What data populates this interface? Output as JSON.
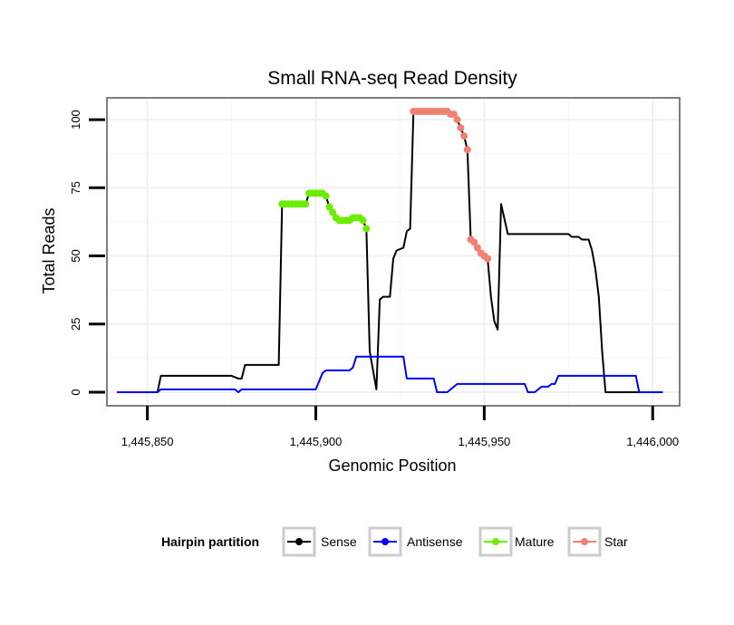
{
  "chart_data": {
    "type": "line",
    "title": "Small RNA-seq Read Density",
    "xlabel": "Genomic Position",
    "ylabel": "Total Reads",
    "xlim": [
      1445838,
      1446008
    ],
    "ylim": [
      -5,
      108
    ],
    "x_ticks": [
      1445850,
      1445900,
      1445950,
      1446000
    ],
    "x_tick_labels": [
      "1,445,850",
      "1,445,900",
      "1,445,950",
      "1,446,000"
    ],
    "y_ticks": [
      0,
      25,
      50,
      75,
      100
    ],
    "y_tick_labels": [
      "0",
      "25",
      "50",
      "75",
      "100"
    ],
    "grid": true,
    "legend": {
      "title": "Hairpin partition",
      "position": "bottom",
      "entries": [
        "Sense",
        "Antisense",
        "Mature",
        "Star"
      ]
    },
    "series": [
      {
        "name": "Sense",
        "color": "#000000",
        "points": [
          [
            1445841,
            0
          ],
          [
            1445853,
            0
          ],
          [
            1445854,
            6
          ],
          [
            1445858,
            6
          ],
          [
            1445875,
            6
          ],
          [
            1445877,
            5
          ],
          [
            1445878,
            5
          ],
          [
            1445879,
            10
          ],
          [
            1445880,
            10
          ],
          [
            1445889,
            10
          ],
          [
            1445890,
            69
          ],
          [
            1445897,
            69
          ],
          [
            1445898,
            73
          ],
          [
            1445902,
            73
          ],
          [
            1445903,
            72
          ],
          [
            1445904,
            68
          ],
          [
            1445905,
            66
          ],
          [
            1445907,
            63
          ],
          [
            1445910,
            63
          ],
          [
            1445912,
            64
          ],
          [
            1445914,
            63
          ],
          [
            1445915,
            60
          ],
          [
            1445916,
            15
          ],
          [
            1445917,
            8
          ],
          [
            1445918,
            1
          ],
          [
            1445919,
            34
          ],
          [
            1445920,
            35
          ],
          [
            1445922,
            35
          ],
          [
            1445923,
            49
          ],
          [
            1445924,
            52
          ],
          [
            1445926,
            53
          ],
          [
            1445927,
            59
          ],
          [
            1445928,
            60
          ],
          [
            1445929,
            103
          ],
          [
            1445939,
            103
          ],
          [
            1445941,
            102
          ],
          [
            1445942,
            100
          ],
          [
            1445943,
            97
          ],
          [
            1445944,
            94
          ],
          [
            1445945,
            89
          ],
          [
            1445946,
            56
          ],
          [
            1445947,
            55
          ],
          [
            1445948,
            53
          ],
          [
            1445949,
            51
          ],
          [
            1445950,
            50
          ],
          [
            1445951,
            49
          ],
          [
            1445952,
            35
          ],
          [
            1445953,
            26
          ],
          [
            1445954,
            23
          ],
          [
            1445955,
            69
          ],
          [
            1445957,
            58
          ],
          [
            1445960,
            58
          ],
          [
            1445975,
            58
          ],
          [
            1445976,
            57
          ],
          [
            1445978,
            57
          ],
          [
            1445979,
            56
          ],
          [
            1445981,
            56
          ],
          [
            1445982,
            52
          ],
          [
            1445983,
            45
          ],
          [
            1445984,
            35
          ],
          [
            1445985,
            15
          ],
          [
            1445986,
            0
          ],
          [
            1446003,
            0
          ]
        ]
      },
      {
        "name": "Antisense",
        "color": "#0000ff",
        "points": [
          [
            1445841,
            0
          ],
          [
            1445853,
            0
          ],
          [
            1445854,
            1
          ],
          [
            1445876,
            1
          ],
          [
            1445877,
            0
          ],
          [
            1445878,
            1
          ],
          [
            1445900,
            1
          ],
          [
            1445901,
            4
          ],
          [
            1445902,
            7
          ],
          [
            1445903,
            8
          ],
          [
            1445910,
            8
          ],
          [
            1445911,
            9
          ],
          [
            1445912,
            13
          ],
          [
            1445926,
            13
          ],
          [
            1445927,
            5
          ],
          [
            1445935,
            5
          ],
          [
            1445936,
            0
          ],
          [
            1445939,
            0
          ],
          [
            1445942,
            3
          ],
          [
            1445962,
            3
          ],
          [
            1445963,
            0
          ],
          [
            1445965,
            0
          ],
          [
            1445967,
            2
          ],
          [
            1445969,
            2
          ],
          [
            1445970,
            3
          ],
          [
            1445971,
            3
          ],
          [
            1445972,
            6
          ],
          [
            1445983,
            6
          ],
          [
            1445995,
            6
          ],
          [
            1445996,
            0
          ],
          [
            1446003,
            0
          ]
        ]
      },
      {
        "name": "Mature",
        "color": "#6aed00",
        "points": [
          [
            1445890,
            69
          ],
          [
            1445891,
            69
          ],
          [
            1445892,
            69
          ],
          [
            1445893,
            69
          ],
          [
            1445894,
            69
          ],
          [
            1445895,
            69
          ],
          [
            1445896,
            69
          ],
          [
            1445897,
            69
          ],
          [
            1445898,
            73
          ],
          [
            1445899,
            73
          ],
          [
            1445900,
            73
          ],
          [
            1445901,
            73
          ],
          [
            1445902,
            73
          ],
          [
            1445903,
            72
          ],
          [
            1445904,
            68
          ],
          [
            1445905,
            66
          ],
          [
            1445906,
            64
          ],
          [
            1445907,
            63
          ],
          [
            1445908,
            63
          ],
          [
            1445909,
            63
          ],
          [
            1445910,
            63
          ],
          [
            1445911,
            64
          ],
          [
            1445912,
            64
          ],
          [
            1445913,
            64
          ],
          [
            1445914,
            63
          ],
          [
            1445915,
            60
          ]
        ]
      },
      {
        "name": "Star",
        "color": "#f08070",
        "points": [
          [
            1445929,
            103
          ],
          [
            1445930,
            103
          ],
          [
            1445931,
            103
          ],
          [
            1445932,
            103
          ],
          [
            1445933,
            103
          ],
          [
            1445934,
            103
          ],
          [
            1445935,
            103
          ],
          [
            1445936,
            103
          ],
          [
            1445937,
            103
          ],
          [
            1445938,
            103
          ],
          [
            1445939,
            103
          ],
          [
            1445940,
            102
          ],
          [
            1445941,
            102
          ],
          [
            1445942,
            100
          ],
          [
            1445943,
            97
          ],
          [
            1445944,
            94
          ],
          [
            1445945,
            89
          ],
          [
            1445946,
            56
          ],
          [
            1445947,
            55
          ],
          [
            1445948,
            53
          ],
          [
            1445949,
            51
          ],
          [
            1445950,
            50
          ],
          [
            1445951,
            49
          ]
        ]
      }
    ]
  }
}
